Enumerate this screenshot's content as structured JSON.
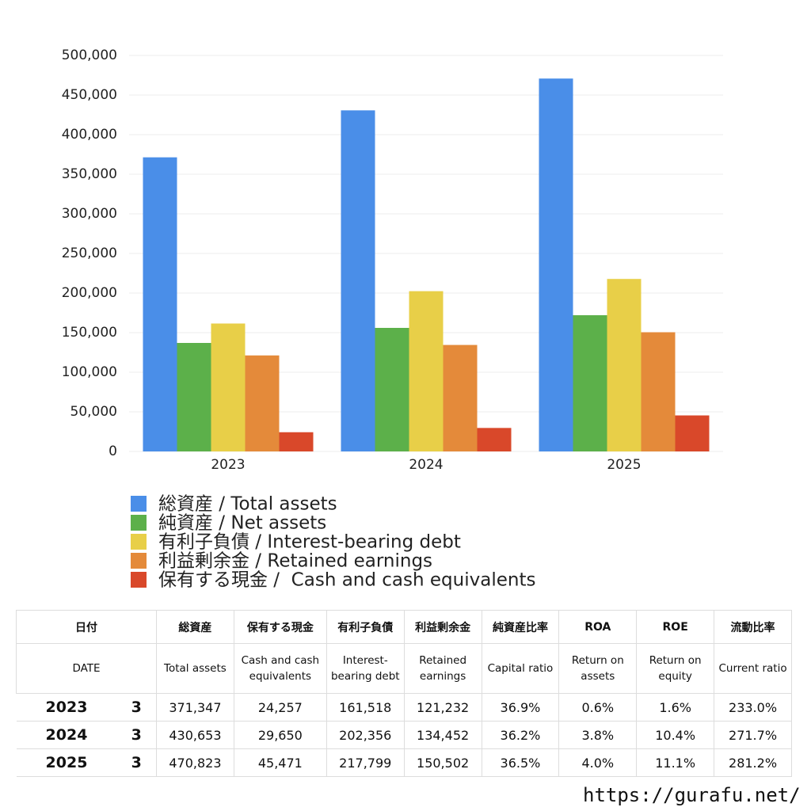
{
  "chart_data": {
    "type": "bar",
    "categories": [
      "2023",
      "2024",
      "2025"
    ],
    "series": [
      {
        "name": "総資産 / Total assets",
        "color": "#4a8ee8",
        "values": [
          371347,
          430653,
          470823
        ]
      },
      {
        "name": "純資産 / Net assets",
        "color": "#5cb04a",
        "values": [
          137000,
          156000,
          172000
        ]
      },
      {
        "name": "有利子負債 / Interest-bearing debt",
        "color": "#e8cf48",
        "values": [
          161518,
          202356,
          217799
        ]
      },
      {
        "name": "利益剰余金 / Retained earnings",
        "color": "#e48a3a",
        "values": [
          121232,
          134452,
          150502
        ]
      },
      {
        "name": "保有する現金 /  Cash and cash equivalents",
        "color": "#d9482a",
        "values": [
          24257,
          29650,
          45471
        ]
      }
    ],
    "ylim": [
      0,
      500000
    ],
    "yticks": [
      0,
      {
        "value": 50000,
        "label": "50,000"
      },
      {
        "value": 100000,
        "label": "100,000"
      },
      {
        "value": 150000,
        "label": "150,000"
      },
      {
        "value": 200000,
        "label": "200,000"
      },
      {
        "value": 250000,
        "label": "250,000"
      },
      {
        "value": 300000,
        "label": "300,000"
      },
      {
        "value": 350000,
        "label": "350,000"
      },
      {
        "value": 400000,
        "label": "400,000"
      },
      {
        "value": 450000,
        "label": "450,000"
      },
      {
        "value": 500000,
        "label": "500,000"
      }
    ],
    "grid": true
  },
  "table": {
    "header": [
      "日付",
      "総資産",
      "保有する現金",
      "有利子負債",
      "利益剰余金",
      "純資産比率",
      "ROA",
      "ROE",
      "流動比率"
    ],
    "subheader": [
      "DATE",
      "Total assets",
      "Cash and cash equivalents",
      "Interest-bearing debt",
      "Retained earnings",
      "Capital ratio",
      "Return on assets",
      "Return on equity",
      "Current ratio"
    ],
    "rows": [
      [
        "2023",
        "3",
        "371,347",
        "24,257",
        "161,518",
        "121,232",
        "36.9%",
        "0.6%",
        "1.6%",
        "233.0%"
      ],
      [
        "2024",
        "3",
        "430,653",
        "29,650",
        "202,356",
        "134,452",
        "36.2%",
        "3.8%",
        "10.4%",
        "271.7%"
      ],
      [
        "2025",
        "3",
        "470,823",
        "45,471",
        "217,799",
        "150,502",
        "36.5%",
        "4.0%",
        "11.1%",
        "281.2%"
      ]
    ]
  },
  "footer": "https://gurafu.net/"
}
